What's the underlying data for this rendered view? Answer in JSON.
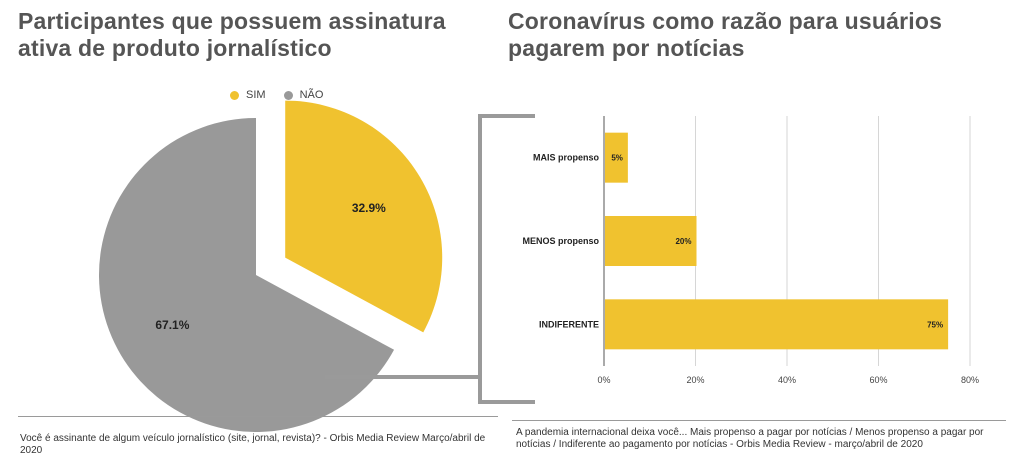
{
  "left_title": "Participantes que possuem assinatura ativa de produto jornalístico",
  "right_title": "Coronavírus como razão para usuários pagarem por notícias",
  "left_note": "Você é assinante de algum veículo jornalístico (site, jornal, revista)? -  Orbis Media Review Março/abril de 2020",
  "right_note": "A pandemia internacional deixa você... Mais propenso a pagar por notícias / Menos propenso a pagar por notícias / Indiferente ao pagamento por notícias -  Orbis Media Review - março/abril de 2020",
  "chart_data": [
    {
      "type": "pie",
      "legend_position": "top",
      "labels": [
        "SIM",
        "NÃO"
      ],
      "values": [
        32.9,
        67.1
      ],
      "value_labels": [
        "32.9%",
        "67.1%"
      ],
      "colors": [
        "#f0c22f",
        "#999999"
      ],
      "exploded": "SIM"
    },
    {
      "type": "bar",
      "orientation": "horizontal",
      "categories": [
        "MAIS propenso",
        "MENOS propenso",
        "INDIFERENTE"
      ],
      "values": [
        5,
        20,
        75
      ],
      "value_labels": [
        "5%",
        "20%",
        "75%"
      ],
      "color": "#f0c22f",
      "xlim": [
        0,
        80
      ],
      "xticks": [
        "0%",
        "20%",
        "40%",
        "60%",
        "80%"
      ],
      "grid": true
    }
  ]
}
